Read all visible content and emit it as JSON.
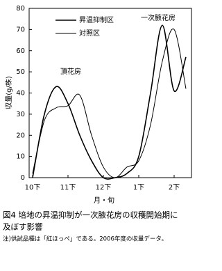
{
  "chart_data": {
    "type": "line",
    "y_label": "収量(g/株)",
    "x_label": "月・旬",
    "categories": [
      "10下",
      null,
      null,
      "11下",
      null,
      null,
      "12下",
      null,
      null,
      "1下",
      null,
      null,
      "2下",
      null
    ],
    "series": [
      {
        "name": "昇温抑制区",
        "color": "#000000",
        "values": [
          0,
          30,
          43,
          35,
          20,
          8,
          0,
          0,
          2,
          10,
          40,
          72,
          41,
          57
        ]
      },
      {
        "name": "対照区",
        "color": "#000000",
        "values": [
          2,
          27,
          33,
          34,
          39,
          20,
          5,
          0,
          5,
          8,
          25,
          55,
          70,
          42
        ]
      }
    ],
    "ylim": [
      0,
      80
    ],
    "yticks": [
      0,
      10,
      20,
      30,
      40,
      50,
      60,
      70,
      80
    ],
    "annotations": [
      "頂花房",
      "一次腋花房"
    ],
    "caption": [
      "図4 培地の昇温抑制が一次腋花房の収穫開始期に",
      "及ぼす影響"
    ],
    "note": "注)供試品種は「紅ほっぺ」である。2006年度の収量データ。"
  }
}
